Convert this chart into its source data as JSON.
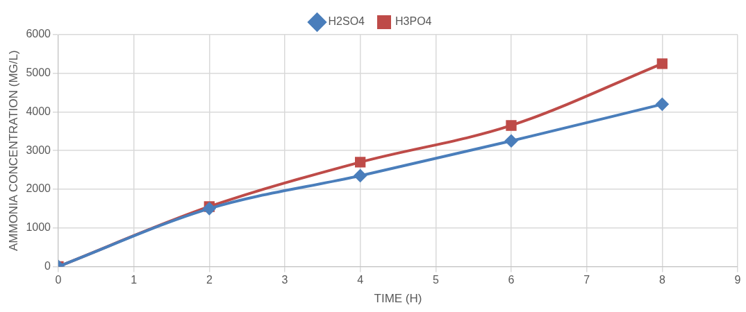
{
  "chart_data": {
    "type": "line",
    "xlabel": "TIME (H)",
    "ylabel": "AMMONIA CONCENTRATION (MG/L)",
    "x": [
      0,
      2,
      4,
      6,
      8
    ],
    "series": [
      {
        "name": "H2SO4",
        "color": "#4a7ebb",
        "marker": "diamond",
        "values": [
          0,
          1500,
          2350,
          3250,
          4200
        ]
      },
      {
        "name": "H3PO4",
        "color": "#be4b48",
        "marker": "square",
        "values": [
          0,
          1550,
          2700,
          3650,
          5250
        ]
      }
    ],
    "xlim": [
      0,
      9
    ],
    "xticks": [
      0,
      1,
      2,
      3,
      4,
      5,
      6,
      7,
      8,
      9
    ],
    "ylim": [
      0,
      6000
    ],
    "yticks": [
      0,
      1000,
      2000,
      3000,
      4000,
      5000,
      6000
    ],
    "grid": true,
    "legend": "top",
    "line_style": "solid"
  }
}
